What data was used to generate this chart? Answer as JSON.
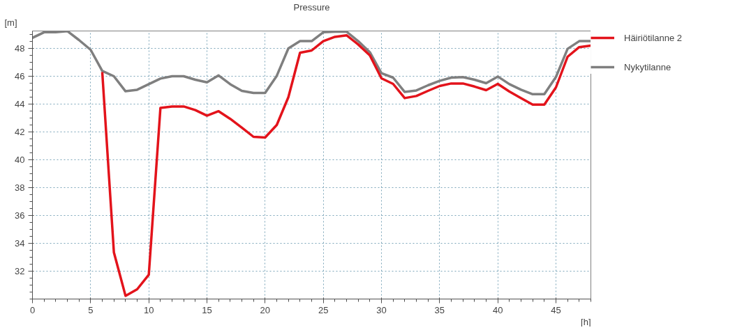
{
  "chart_data": {
    "type": "line",
    "title": "Pressure",
    "xlabel": "[h]",
    "ylabel": "[m]",
    "x": [
      0,
      1,
      2,
      3,
      4,
      5,
      6,
      7,
      8,
      9,
      10,
      11,
      12,
      13,
      14,
      15,
      16,
      17,
      18,
      19,
      20,
      21,
      22,
      23,
      24,
      25,
      26,
      27,
      28,
      29,
      30,
      31,
      32,
      33,
      34,
      35,
      36,
      37,
      38,
      39,
      40,
      41,
      42,
      43,
      44,
      45,
      46,
      47,
      48
    ],
    "series": [
      {
        "name": "Häiriötilanne 2",
        "color": "#e3131b",
        "values": [
          null,
          null,
          null,
          null,
          null,
          null,
          46.3,
          33.35,
          30.23,
          30.7,
          31.74,
          43.72,
          43.83,
          43.83,
          43.57,
          43.17,
          43.49,
          42.94,
          42.31,
          41.65,
          41.6,
          42.5,
          44.5,
          47.69,
          47.85,
          48.52,
          48.83,
          48.94,
          48.28,
          47.5,
          45.85,
          45.45,
          44.43,
          44.58,
          44.95,
          45.3,
          45.48,
          45.48,
          45.26,
          45.0,
          45.45,
          44.9,
          44.43,
          43.96,
          43.96,
          45.2,
          47.4,
          48.09,
          48.2
        ]
      },
      {
        "name": "Nykytilanne",
        "color": "#7f7f7f",
        "values": [
          48.76,
          49.16,
          49.16,
          49.24,
          48.6,
          47.9,
          46.38,
          46.0,
          44.92,
          45.03,
          45.43,
          45.83,
          46.0,
          46.0,
          45.75,
          45.56,
          46.06,
          45.43,
          44.95,
          44.8,
          44.8,
          46.03,
          48.0,
          48.52,
          48.52,
          49.16,
          49.2,
          49.2,
          48.52,
          47.73,
          46.22,
          45.9,
          44.87,
          44.98,
          45.35,
          45.67,
          45.9,
          45.94,
          45.75,
          45.5,
          45.98,
          45.43,
          45.03,
          44.71,
          44.71,
          45.95,
          47.97,
          48.52,
          48.52
        ]
      }
    ],
    "xlim": [
      0,
      48
    ],
    "ylim": [
      30,
      49.25
    ],
    "xticks": [
      0,
      5,
      10,
      15,
      20,
      25,
      30,
      35,
      40,
      45
    ],
    "yticks": [
      32,
      34,
      36,
      38,
      40,
      42,
      44,
      46,
      48
    ],
    "grid": true,
    "legend": "top right",
    "line_style": "solid",
    "marker": "none"
  }
}
